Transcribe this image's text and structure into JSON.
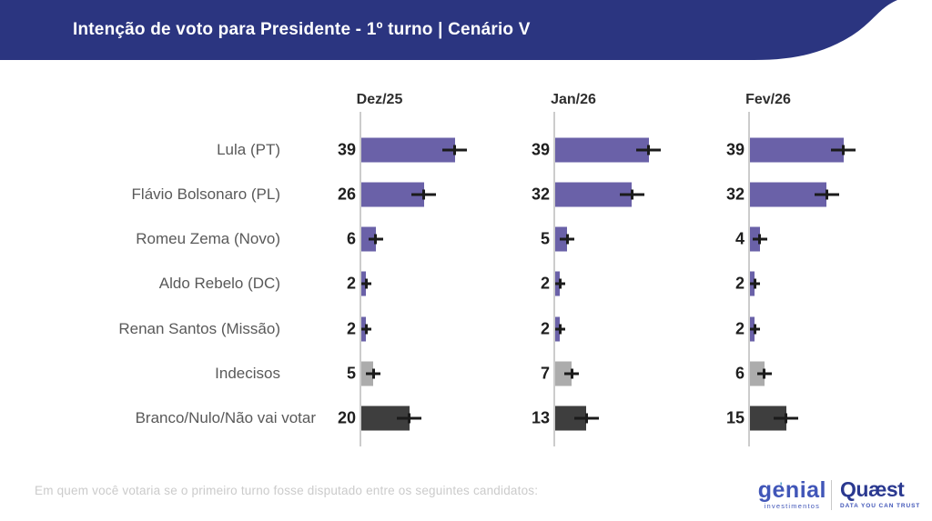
{
  "header": {
    "title": "Intenção de voto para Presidente - 1º turno | Cenário V"
  },
  "chart_data": {
    "type": "bar",
    "orientation": "horizontal",
    "title": "Intenção de voto para Presidente - 1º turno | Cenário V",
    "categories": [
      "Lula (PT)",
      "Flávio Bolsonaro (PL)",
      "Romeu Zema (Novo)",
      "Aldo Rebelo (DC)",
      "Renan Santos (Missão)",
      "Indecisos",
      "Branco/Nulo/Não vai votar"
    ],
    "series": [
      {
        "name": "Dez/25",
        "values": [
          39,
          26,
          6,
          2,
          2,
          5,
          20
        ]
      },
      {
        "name": "Jan/26",
        "values": [
          39,
          32,
          5,
          2,
          2,
          7,
          13
        ]
      },
      {
        "name": "Fev/26",
        "values": [
          39,
          32,
          4,
          2,
          2,
          6,
          15
        ]
      }
    ],
    "bar_colors": [
      "#6A61A8",
      "#6A61A8",
      "#6A61A8",
      "#6A61A8",
      "#6A61A8",
      "#ACACAC",
      "#3E3E3E"
    ],
    "error_bars": true,
    "value_labels": "numeric, left of each bar",
    "xlim": [
      0,
      43
    ],
    "grid": false,
    "legend_position": "column-headers-top"
  },
  "footer": {
    "question": "Em quem você votaria se o primeiro turno fosse disputado entre os seguintes candidatos:"
  },
  "branding": {
    "genial": {
      "wordmark": "genial",
      "subtext": "investimentos"
    },
    "quaest": {
      "wordmark": "Quæst",
      "tagline": "DATA YOU CAN TRUST"
    }
  },
  "colors": {
    "banner": "#2B3580",
    "bar_purple": "#6A61A8",
    "bar_gray": "#ACACAC",
    "bar_dark": "#3E3E3E",
    "axis_line": "#CCCCCC",
    "category_text": "#595959",
    "value_text": "#1E1E1E",
    "error_bar": "#1B1B1B",
    "question_text": "#CBCBCB",
    "genial_blue": "#4156B8",
    "quaest_navy": "#2B3990"
  }
}
